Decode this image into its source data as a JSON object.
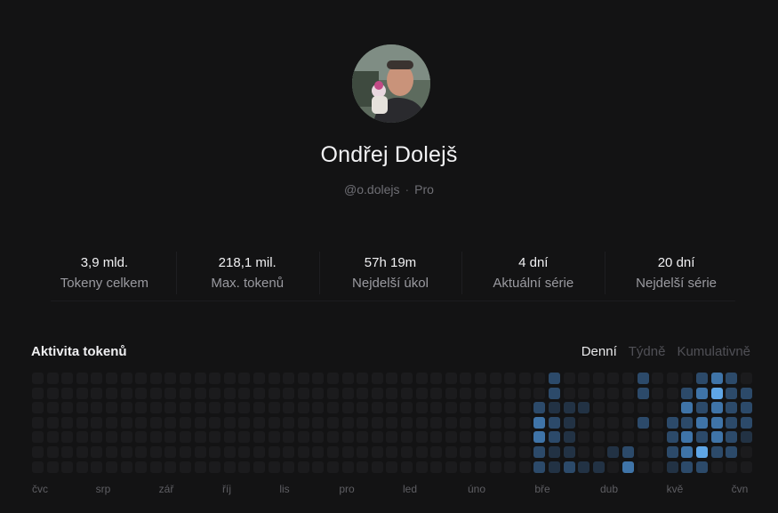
{
  "profile": {
    "name": "Ondřej Dolejš",
    "handle": "@o.dolejs",
    "separator": "·",
    "plan": "Pro"
  },
  "stats": [
    {
      "value": "3,9 mld.",
      "label": "Tokeny celkem"
    },
    {
      "value": "218,1 mil.",
      "label": "Max. tokenů"
    },
    {
      "value": "57h 19m",
      "label": "Nejdelší úkol"
    },
    {
      "value": "4 dní",
      "label": "Aktuální série"
    },
    {
      "value": "20 dní",
      "label": "Nejdelší série"
    }
  ],
  "activity": {
    "title": "Aktivita tokenů",
    "modes": [
      {
        "label": "Denní",
        "active": true
      },
      {
        "label": "Týdně",
        "active": false
      },
      {
        "label": "Kumulativně",
        "active": false
      }
    ],
    "months": [
      "čvc",
      "srp",
      "zář",
      "říj",
      "lis",
      "pro",
      "led",
      "úno",
      "bře",
      "dub",
      "kvě",
      "čvn"
    ],
    "colors": {
      "empty": "#1b1b1d",
      "level1": "#223244",
      "level2": "#2c4a6a",
      "level3": "#3f74a8",
      "level4": "#5fa6e6"
    }
  }
}
